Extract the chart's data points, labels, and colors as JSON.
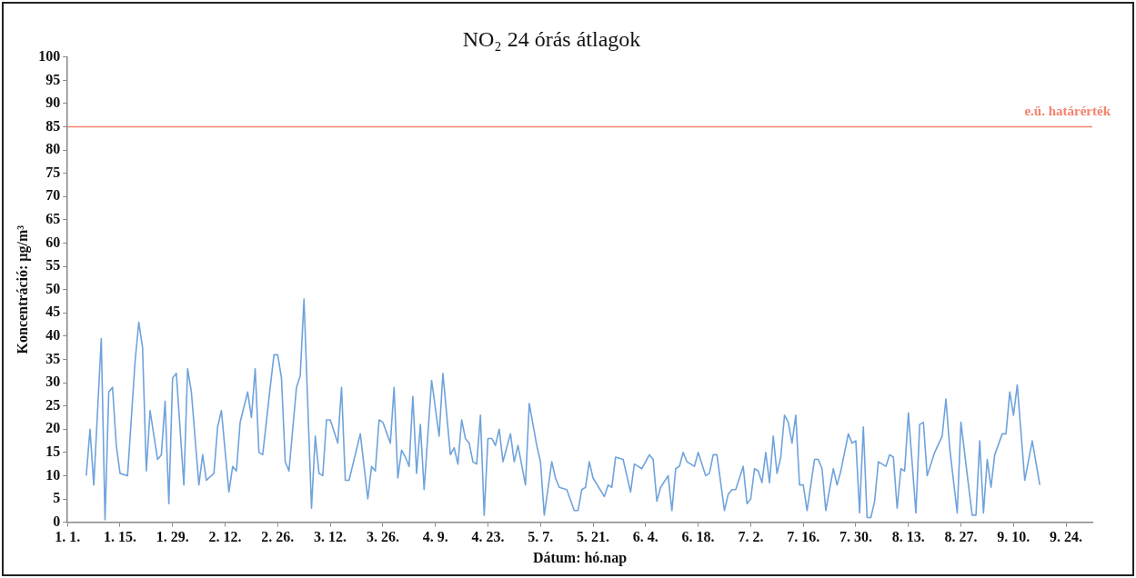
{
  "chart_data": {
    "type": "line",
    "title": "NO₂ 24 órás átlagok",
    "xlabel": "Dátum: hó.nap",
    "ylabel": "Koncentráció: µg/m³",
    "xlim": [
      "--01-01",
      "--10-01"
    ],
    "ylim": [
      0,
      100
    ],
    "xticks": [
      {
        "value": "--01-01",
        "label": "1. 1."
      },
      {
        "value": "--01-15",
        "label": "1. 15."
      },
      {
        "value": "--01-29",
        "label": "1. 29."
      },
      {
        "value": "--02-12",
        "label": "2. 12."
      },
      {
        "value": "--02-26",
        "label": "2. 26."
      },
      {
        "value": "--03-12",
        "label": "3. 12."
      },
      {
        "value": "--03-26",
        "label": "3. 26."
      },
      {
        "value": "--04-09",
        "label": "4. 9."
      },
      {
        "value": "--04-23",
        "label": "4. 23."
      },
      {
        "value": "--05-07",
        "label": "5. 7."
      },
      {
        "value": "--05-21",
        "label": "5. 21."
      },
      {
        "value": "--06-04",
        "label": "6. 4."
      },
      {
        "value": "--06-18",
        "label": "6. 18."
      },
      {
        "value": "--07-02",
        "label": "7. 2."
      },
      {
        "value": "--07-16",
        "label": "7. 16."
      },
      {
        "value": "--07-30",
        "label": "7. 30."
      },
      {
        "value": "--08-13",
        "label": "8. 13."
      },
      {
        "value": "--08-27",
        "label": "8. 27."
      },
      {
        "value": "--09-10",
        "label": "9. 10."
      },
      {
        "value": "--09-24",
        "label": "9. 24."
      }
    ],
    "yticks": [
      0,
      5,
      10,
      15,
      20,
      25,
      30,
      35,
      40,
      45,
      50,
      55,
      60,
      65,
      70,
      75,
      80,
      85,
      90,
      95,
      100
    ],
    "x": [
      "--01-06",
      "--01-07",
      "--01-08",
      "--01-10",
      "--01-11",
      "--01-12",
      "--01-13",
      "--01-14",
      "--01-15",
      "--01-17",
      "--01-19",
      "--01-20",
      "--01-21",
      "--01-22",
      "--01-23",
      "--01-25",
      "--01-26",
      "--01-27",
      "--01-28",
      "--01-29",
      "--01-30",
      "--02-01",
      "--02-02",
      "--02-03",
      "--02-05",
      "--02-06",
      "--02-07",
      "--02-09",
      "--02-10",
      "--02-11",
      "--02-13",
      "--02-14",
      "--02-15",
      "--02-16",
      "--02-18",
      "--02-19",
      "--02-20",
      "--02-21",
      "--02-22",
      "--02-24",
      "--02-25",
      "--02-26",
      "--02-27",
      "--02-28",
      "--03-01",
      "--03-03",
      "--03-04",
      "--03-05",
      "--03-07",
      "--03-08",
      "--03-09",
      "--03-10",
      "--03-11",
      "--03-12",
      "--03-14",
      "--03-15",
      "--03-16",
      "--03-17",
      "--03-20",
      "--03-22",
      "--03-23",
      "--03-24",
      "--03-25",
      "--03-26",
      "--03-28",
      "--03-29",
      "--03-30",
      "--03-31",
      "--04-01",
      "--04-02",
      "--04-03",
      "--04-04",
      "--04-05",
      "--04-06",
      "--04-08",
      "--04-10",
      "--04-11",
      "--04-13",
      "--04-14",
      "--04-15",
      "--04-16",
      "--04-17",
      "--04-18",
      "--04-19",
      "--04-20",
      "--04-21",
      "--04-22",
      "--04-23",
      "--04-24",
      "--04-25",
      "--04-26",
      "--04-27",
      "--04-29",
      "--04-30",
      "--05-01",
      "--05-03",
      "--05-04",
      "--05-06",
      "--05-07",
      "--05-08",
      "--05-10",
      "--05-11",
      "--05-12",
      "--05-14",
      "--05-16",
      "--05-17",
      "--05-18",
      "--05-19",
      "--05-20",
      "--05-21",
      "--05-24",
      "--05-25",
      "--05-26",
      "--05-27",
      "--05-29",
      "--05-31",
      "--06-01",
      "--06-02",
      "--06-03",
      "--06-05",
      "--06-06",
      "--06-07",
      "--06-08",
      "--06-10",
      "--06-11",
      "--06-12",
      "--06-13",
      "--06-14",
      "--06-15",
      "--06-17",
      "--06-18",
      "--06-20",
      "--06-21",
      "--06-22",
      "--06-23",
      "--06-25",
      "--06-26",
      "--06-27",
      "--06-28",
      "--06-30",
      "--07-01",
      "--07-02",
      "--07-03",
      "--07-04",
      "--07-05",
      "--07-06",
      "--07-07",
      "--07-08",
      "--07-09",
      "--07-10",
      "--07-11",
      "--07-12",
      "--07-13",
      "--07-14",
      "--07-15",
      "--07-16",
      "--07-17",
      "--07-19",
      "--07-20",
      "--07-21",
      "--07-22",
      "--07-24",
      "--07-25",
      "--07-26",
      "--07-28",
      "--07-29",
      "--07-30",
      "--07-31",
      "--08-01",
      "--08-02",
      "--08-03",
      "--08-04",
      "--08-05",
      "--08-06",
      "--08-07",
      "--08-08",
      "--08-09",
      "--08-10",
      "--08-11",
      "--08-12",
      "--08-13",
      "--08-15",
      "--08-16",
      "--08-17",
      "--08-18",
      "--08-20",
      "--08-22",
      "--08-23",
      "--08-24",
      "--08-26",
      "--08-27",
      "--08-29",
      "--08-30",
      "--08-31",
      "--09-01",
      "--09-02",
      "--09-03",
      "--09-04",
      "--09-05",
      "--09-07",
      "--09-08",
      "--09-09",
      "--09-10",
      "--09-11",
      "--09-13",
      "--09-15",
      "--09-17"
    ],
    "series": [
      {
        "color": "#6fa3dc",
        "values": [
          10,
          20,
          8,
          39.5,
          0.5,
          28,
          29,
          16.5,
          10.5,
          10,
          34.5,
          43,
          37.5,
          11,
          24,
          13.5,
          14.5,
          26,
          4,
          31,
          32,
          8,
          33,
          28,
          8,
          14.5,
          9,
          10.5,
          20.5,
          24,
          6.5,
          12,
          11,
          21.5,
          28,
          22.5,
          33,
          15,
          14.5,
          29,
          36,
          36,
          31,
          13,
          11,
          29,
          31.5,
          48,
          3,
          18.5,
          10.5,
          10,
          22,
          22,
          17,
          29,
          9,
          9,
          19,
          5,
          12,
          11,
          22,
          21.5,
          17,
          29,
          9.5,
          15.5,
          14,
          12,
          27,
          10.5,
          21,
          7,
          30.5,
          18.5,
          32,
          14.5,
          16,
          12.5,
          22,
          18,
          17,
          13,
          12.5,
          23,
          1.5,
          18,
          18,
          16.5,
          20,
          13,
          19,
          13,
          16.5,
          8,
          25.5,
          16.5,
          13,
          1.5,
          13,
          9.5,
          7.5,
          7,
          2.5,
          2.5,
          7,
          7.5,
          13,
          9.5,
          5.5,
          8,
          7.5,
          14,
          13.5,
          6.5,
          12.5,
          12,
          11.5,
          14.5,
          13.5,
          4.5,
          7.5,
          10,
          2.5,
          11.5,
          12,
          15,
          13,
          12,
          15,
          10,
          10.5,
          14.5,
          14.5,
          2.5,
          6,
          7,
          7,
          12,
          4,
          5,
          11.5,
          11,
          8.5,
          15,
          8.5,
          18.5,
          10.5,
          14,
          23,
          21.5,
          17,
          23,
          8,
          8,
          2.5,
          13.5,
          13.5,
          11.5,
          2.5,
          11.5,
          8,
          11,
          19,
          17,
          17.5,
          2,
          20.5,
          1,
          1,
          4.5,
          13,
          12.5,
          12,
          14.5,
          14,
          3,
          11.5,
          11,
          23.5,
          2,
          21,
          21.5,
          10,
          15,
          18.5,
          26.5,
          16,
          2,
          21.5,
          8,
          1.5,
          1.5,
          17.5,
          2,
          13.5,
          7.5,
          14.5,
          19,
          19,
          28,
          23,
          29.5,
          9,
          17.5,
          8
        ]
      }
    ],
    "ref_lines": [
      {
        "axis": "y",
        "value": 85,
        "label": "e.ü. határérték",
        "color": "#f4826e"
      }
    ],
    "marker": "none"
  }
}
